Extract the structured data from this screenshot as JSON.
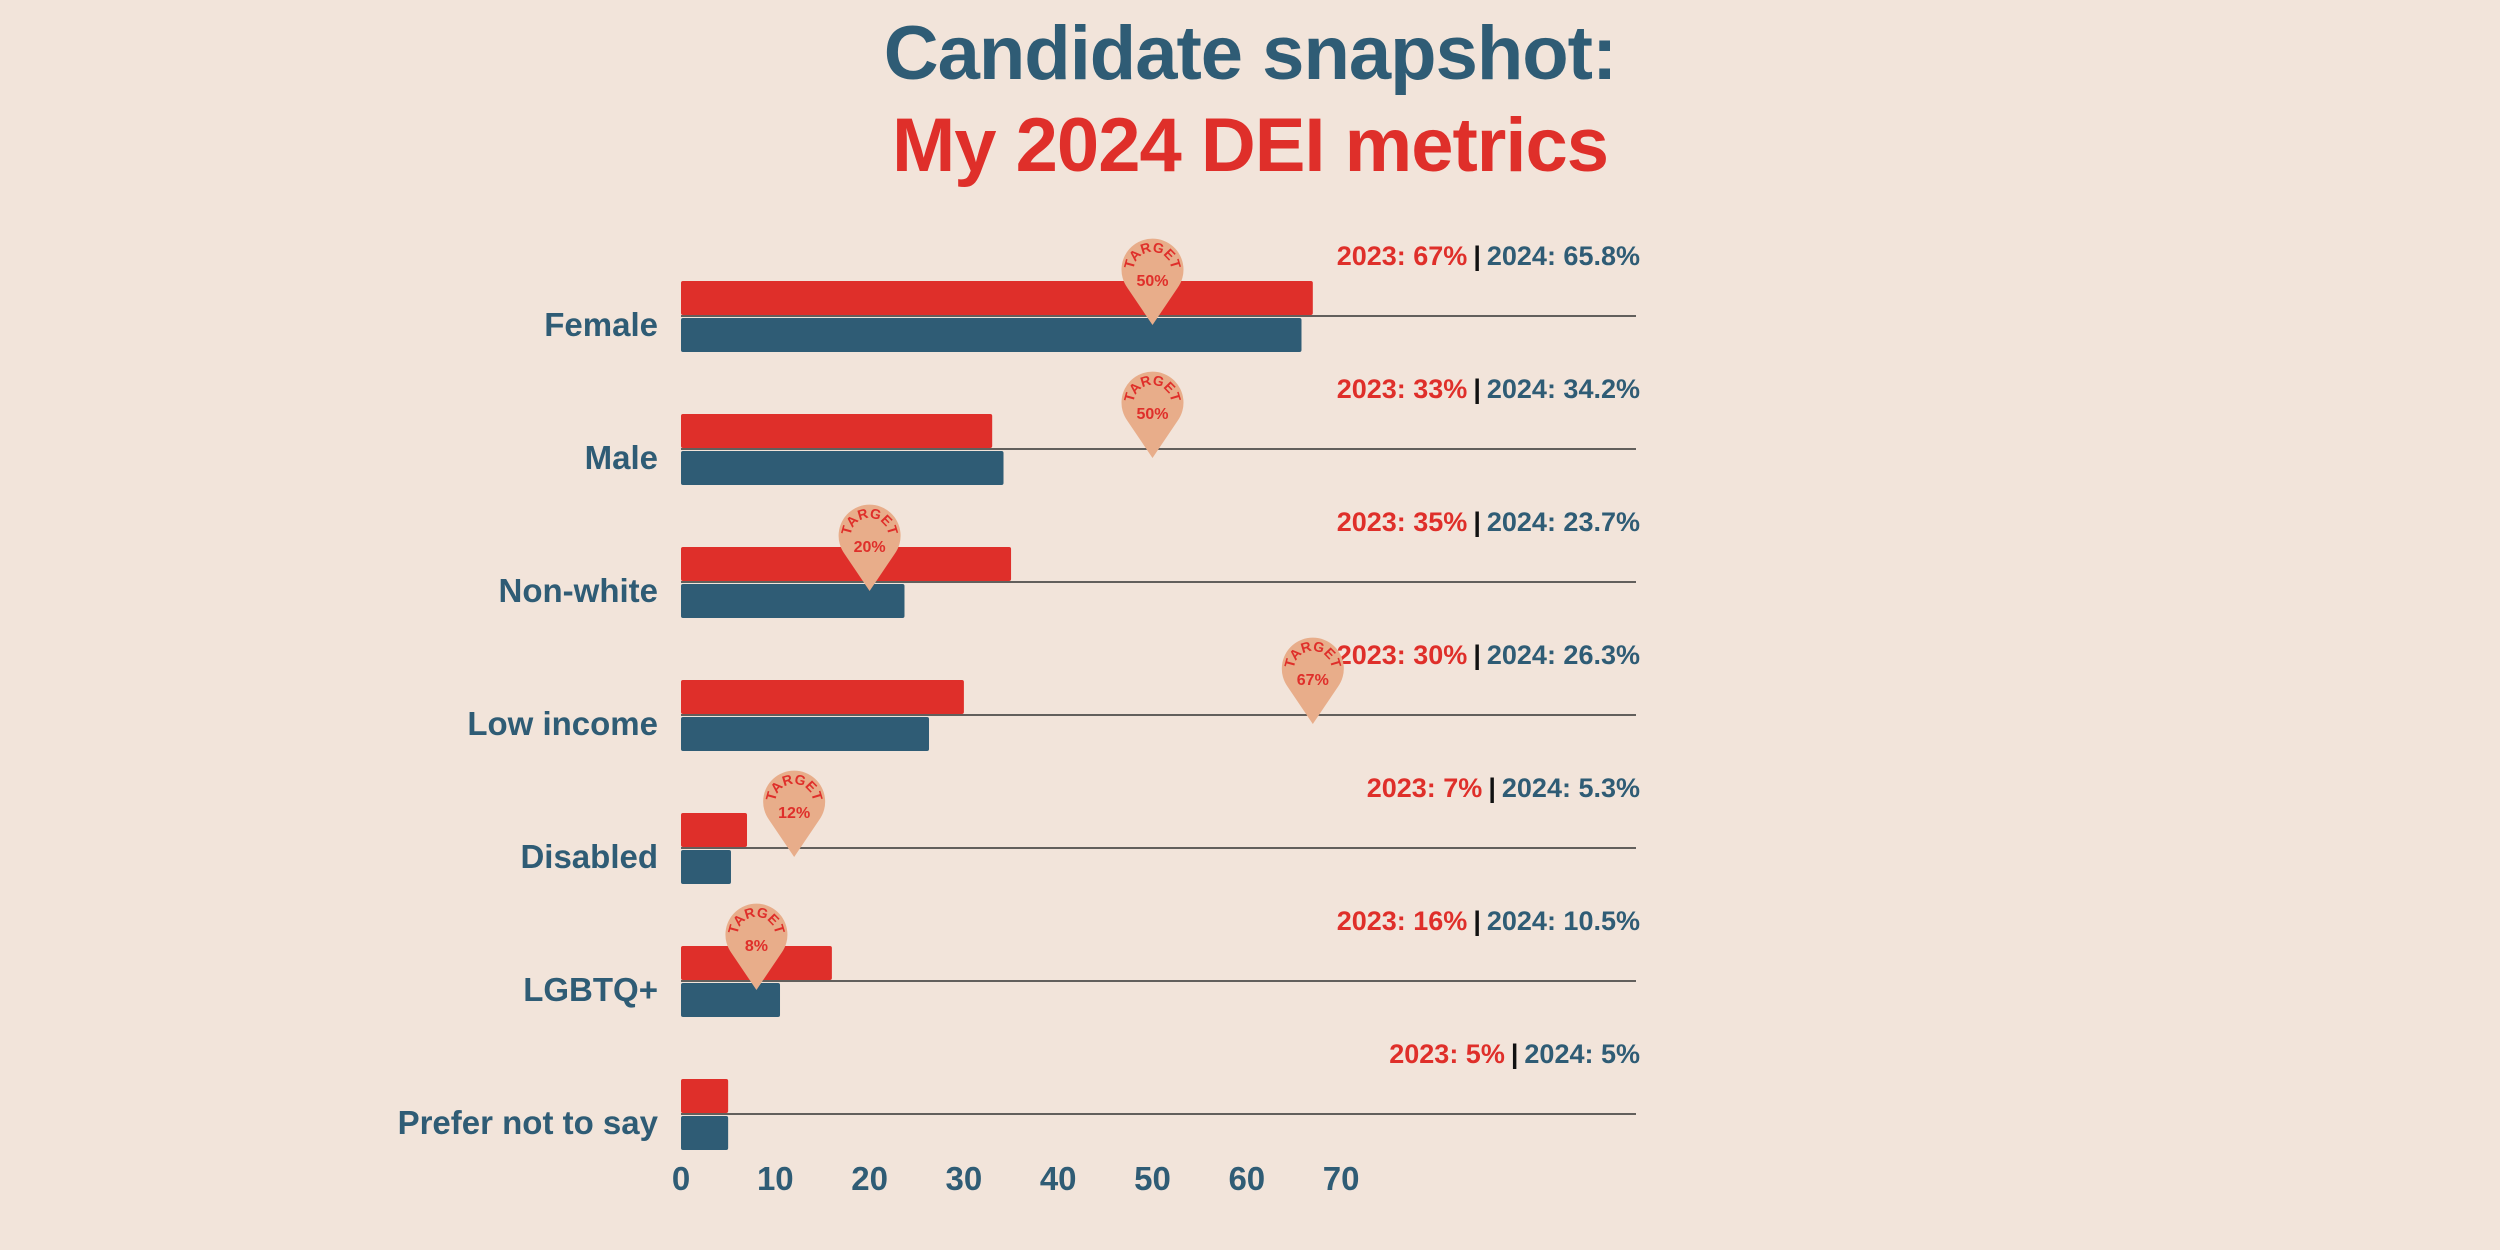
{
  "title": {
    "line1": "Candidate snapshot:",
    "line2": "My 2024 DEI metrics"
  },
  "colors": {
    "background": "#f2e4da",
    "series_2023": "#df2f2a",
    "series_2024": "#2f5c75",
    "target_pin": "#e8ad8a",
    "baseline": "#333333",
    "separator": "#111111"
  },
  "chart_data": {
    "type": "bar",
    "orientation": "horizontal",
    "title": "Candidate snapshot: My 2024 DEI metrics",
    "xlabel": "",
    "ylabel": "",
    "xlim": [
      0,
      70
    ],
    "xticks": [
      0,
      10,
      20,
      30,
      40,
      50,
      60,
      70
    ],
    "categories": [
      "Female",
      "Male",
      "Non-white",
      "Low income",
      "Disabled",
      "LGBTQ+",
      "Prefer not to say"
    ],
    "series": [
      {
        "name": "2023",
        "values": [
          67,
          33,
          35,
          30,
          7,
          16,
          5
        ]
      },
      {
        "name": "2024",
        "values": [
          65.8,
          34.2,
          23.7,
          26.3,
          5.3,
          10.5,
          5
        ]
      }
    ],
    "targets": [
      50,
      50,
      20,
      67,
      12,
      8,
      null
    ],
    "target_word": "TARGET",
    "annotations": [
      {
        "a2023": "2023: 67%",
        "a2024": "2024: 65.8%"
      },
      {
        "a2023": "2023: 33%",
        "a2024": "2024: 34.2%"
      },
      {
        "a2023": "2023: 35%",
        "a2024": "2024: 23.7%"
      },
      {
        "a2023": "2023: 30%",
        "a2024": "2024: 26.3%"
      },
      {
        "a2023": "2023: 7%",
        "a2024": "2024: 5.3%"
      },
      {
        "a2023": "2023: 16%",
        "a2024": "2024: 10.5%"
      },
      {
        "a2023": "2023: 5%",
        "a2024": "2024: 5%"
      }
    ]
  }
}
